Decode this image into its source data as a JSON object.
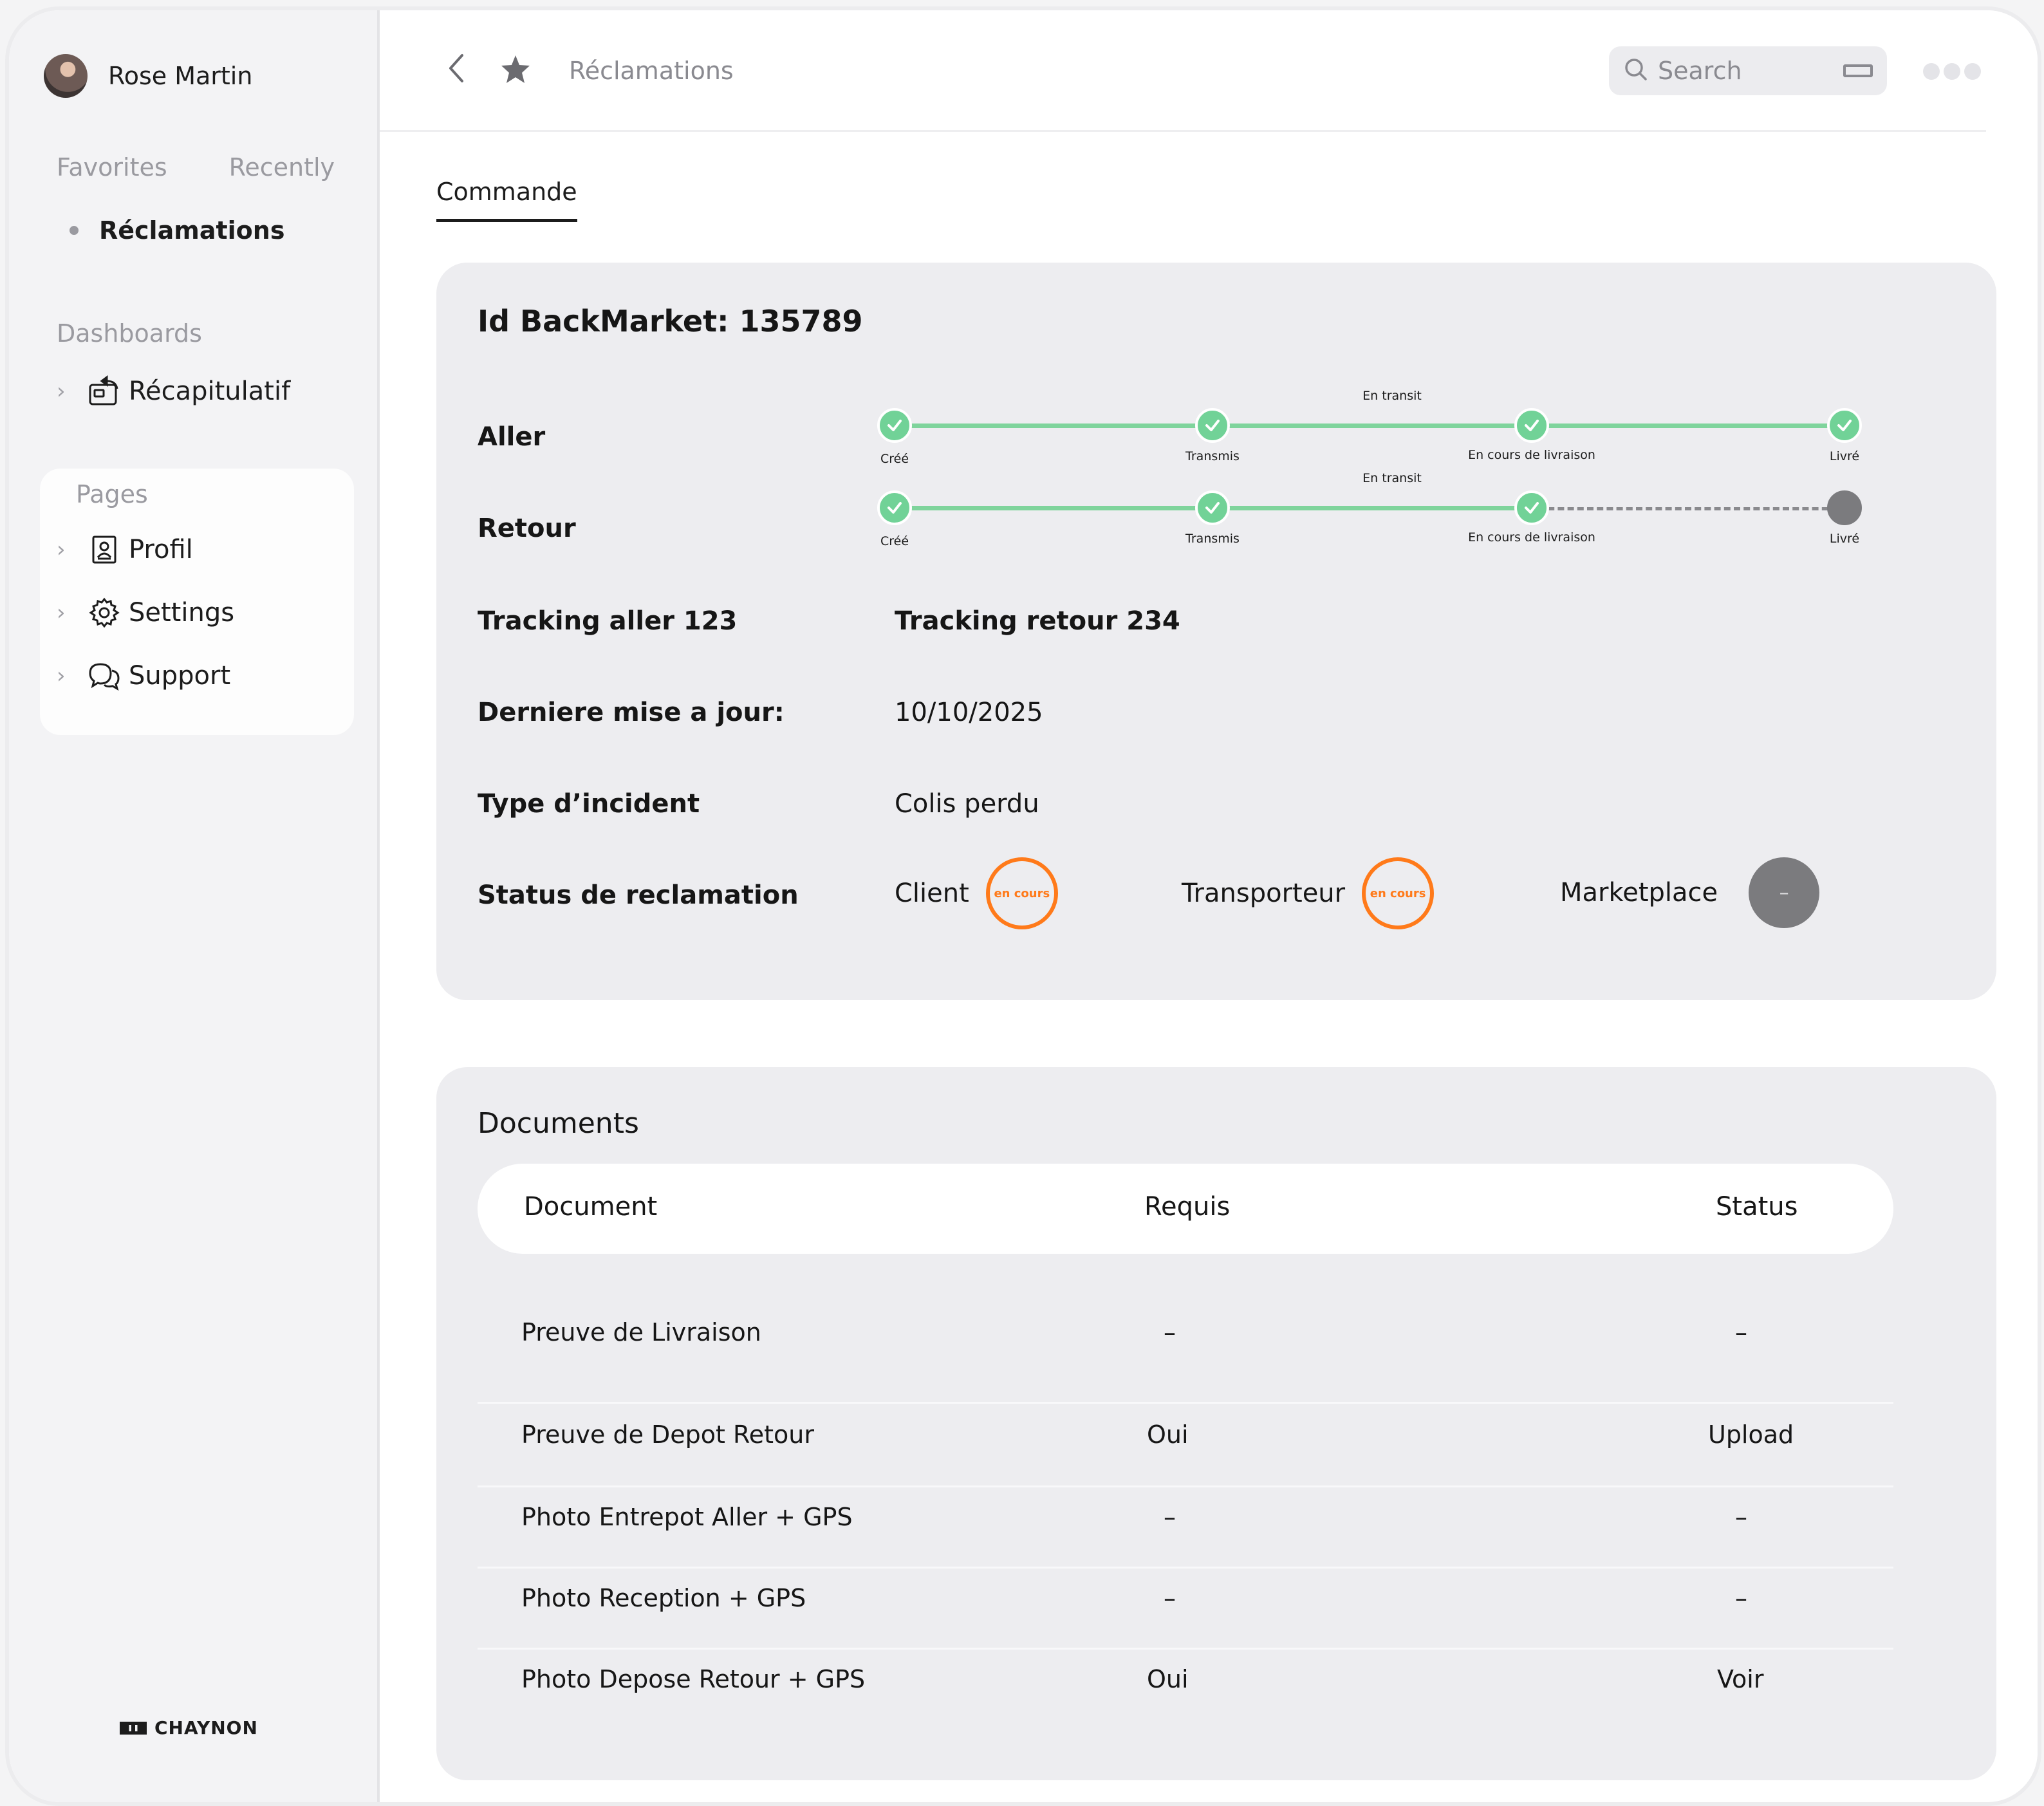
{
  "user": {
    "name": "Rose Martin"
  },
  "sidebar": {
    "tab_favorites": "Favorites",
    "tab_recently": "Recently",
    "active_item": "Réclamations",
    "dashboards_label": "Dashboards",
    "dashboards": [
      {
        "label": "Récapitulatif",
        "icon": "recap-icon"
      }
    ],
    "pages_label": "Pages",
    "pages": [
      {
        "label": "Profil",
        "icon": "profile-icon"
      },
      {
        "label": "Settings",
        "icon": "gear-icon"
      },
      {
        "label": "Support",
        "icon": "chat-icon"
      }
    ],
    "brand": "CHAYNON"
  },
  "header": {
    "breadcrumb": "Réclamations",
    "search_placeholder": "Search"
  },
  "tabs": {
    "active": "Commande"
  },
  "order": {
    "id_title": "Id BackMarket: 135789",
    "aller": {
      "label": "Aller",
      "transit_label": "En transit",
      "steps": [
        "Créé",
        "Transmis",
        "En cours de livraison",
        "Livré"
      ],
      "completed_steps": 4
    },
    "retour": {
      "label": "Retour",
      "transit_label": "En transit",
      "steps": [
        "Créé",
        "Transmis",
        "En cours de livraison",
        "Livré"
      ],
      "completed_steps": 3
    },
    "tracking_aller": "Tracking aller 123",
    "tracking_retour": "Tracking retour 234",
    "last_update_label": "Derniere mise a jour:",
    "last_update_value": "10/10/2025",
    "incident_label": "Type d’incident",
    "incident_value": "Colis perdu",
    "status_label": "Status de reclamation",
    "statuses": [
      {
        "party": "Client",
        "state": "en cours"
      },
      {
        "party": "Transporteur",
        "state": "en cours"
      },
      {
        "party": "Marketplace",
        "state": "–"
      }
    ]
  },
  "documents": {
    "title": "Documents",
    "columns": [
      "Document",
      "Requis",
      "Status"
    ],
    "rows": [
      {
        "document": "Preuve de Livraison",
        "requis": "–",
        "status": "–"
      },
      {
        "document": "Preuve de Depot Retour",
        "requis": "Oui",
        "status": "Upload"
      },
      {
        "document": "Photo Entrepot Aller + GPS",
        "requis": "–",
        "status": "–"
      },
      {
        "document": "Photo Reception + GPS",
        "requis": "–",
        "status": "–"
      },
      {
        "document": "Photo Depose Retour + GPS",
        "requis": "Oui",
        "status": "Voir"
      }
    ]
  },
  "colors": {
    "accent_green": "#71d297",
    "accent_orange": "#ff7a1a",
    "pending_grey": "#7b7b7e"
  }
}
